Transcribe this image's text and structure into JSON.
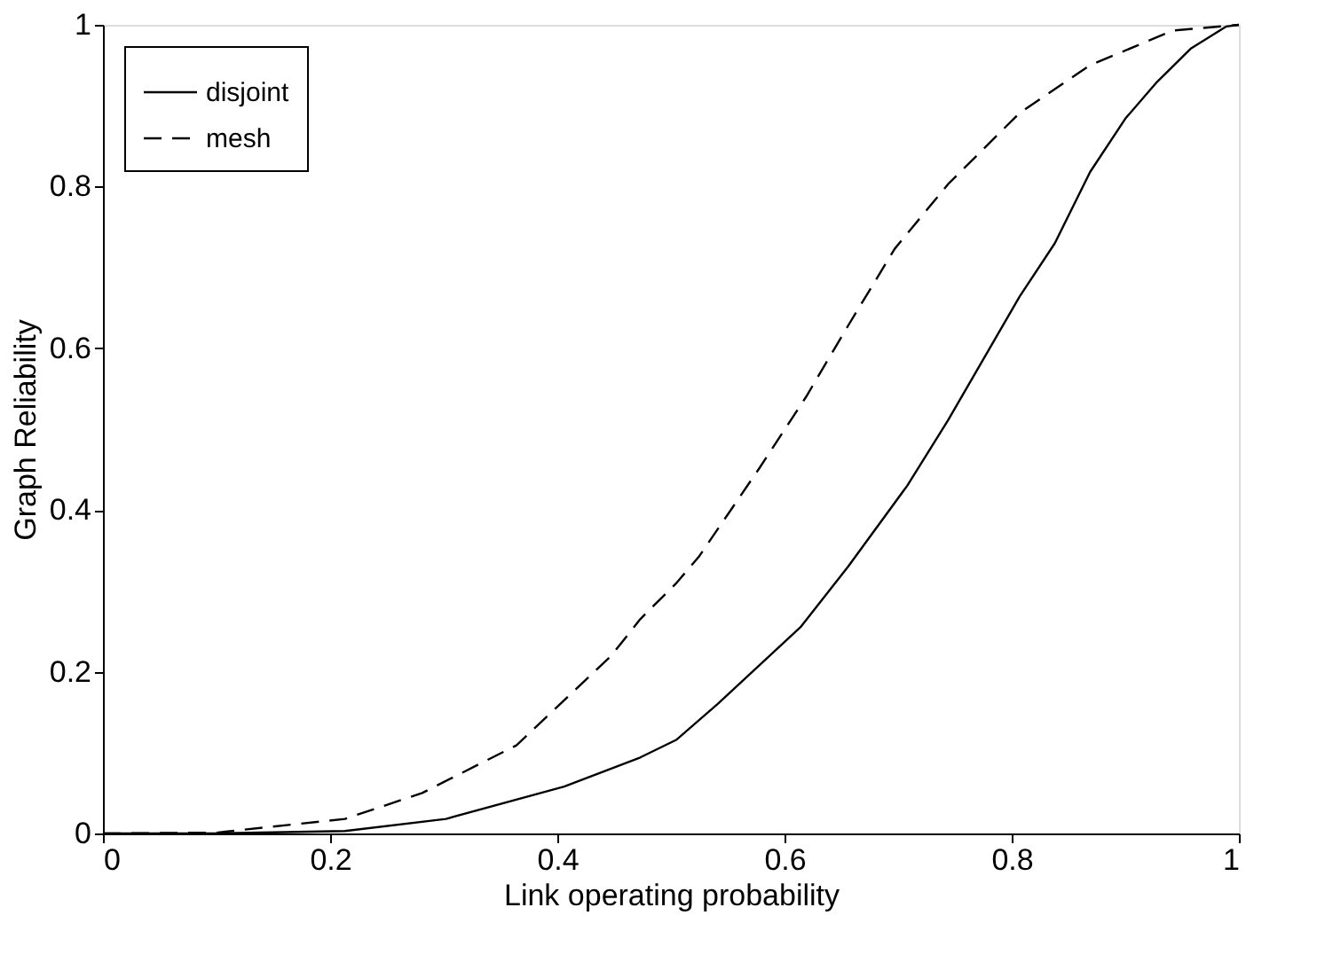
{
  "chart_data": {
    "type": "line",
    "xlabel": "Link operating probability",
    "ylabel": "Graph Reliability",
    "xlim": [
      0,
      1
    ],
    "ylim": [
      0,
      1
    ],
    "xticks": [
      0,
      0.2,
      0.4,
      0.6,
      0.8,
      1
    ],
    "yticks": [
      0,
      0.2,
      0.4,
      0.6,
      0.8,
      1
    ],
    "grid": false,
    "legend": "top left",
    "series": [
      {
        "name": "disjoint",
        "color": "#000000",
        "line_style": "solid",
        "x": [
          0,
          0.1,
          0.213,
          0.302,
          0.406,
          0.473,
          0.505,
          0.541,
          0.614,
          0.656,
          0.708,
          0.744,
          0.786,
          0.807,
          0.838,
          0.869,
          0.9,
          0.927,
          0.958,
          0.989,
          1
        ],
        "values": [
          0,
          0.0,
          0.003,
          0.018,
          0.058,
          0.094,
          0.116,
          0.16,
          0.255,
          0.33,
          0.43,
          0.511,
          0.613,
          0.664,
          0.73,
          0.818,
          0.884,
          0.928,
          0.971,
          0.998,
          1
        ]
      },
      {
        "name": "mesh",
        "color": "#000000",
        "line_style": "dashed",
        "x": [
          0,
          0.1,
          0.213,
          0.281,
          0.364,
          0.447,
          0.473,
          0.505,
          0.525,
          0.578,
          0.619,
          0.656,
          0.697,
          0.744,
          0.807,
          0.869,
          0.942,
          1
        ],
        "values": [
          0,
          0.001,
          0.018,
          0.05,
          0.109,
          0.219,
          0.265,
          0.31,
          0.343,
          0.452,
          0.54,
          0.628,
          0.723,
          0.803,
          0.891,
          0.95,
          0.993,
          1
        ]
      }
    ]
  }
}
